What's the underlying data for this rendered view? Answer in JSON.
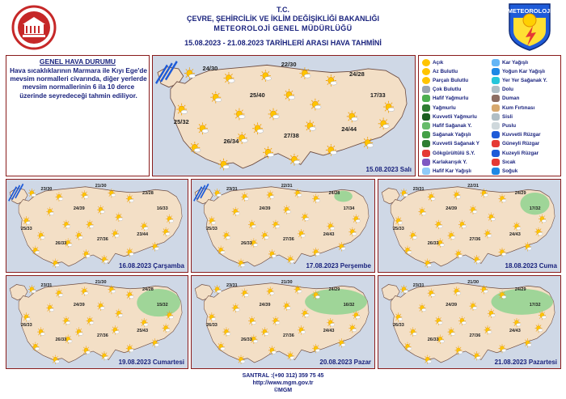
{
  "header": {
    "line1": "T.C.",
    "line2": "ÇEVRE, ŞEHİRCİLİK VE İKLİM DEĞİŞİKLİĞİ BAKANLIĞI",
    "line3": "METEOROLOJİ GENEL MÜDÜRLÜĞÜ",
    "line4": "15.08.2023 - 21.08.2023 TARİHLERİ ARASI HAVA TAHMİNİ",
    "logo_right_text": "METEOROLOJİ"
  },
  "genel": {
    "title": "GENEL HAVA DURUMU",
    "body": "Hava sıcaklıklarının Marmara ile Kıyı Ege'de mevsim normalleri civarında, diğer yerlerde mevsim normallerinin 6 ila 10 derce üzerinde seyredeceği tahmin ediliyor."
  },
  "legend": {
    "left": [
      "Açık",
      "Az Bulutlu",
      "Parçalı Bulutlu",
      "Çok Bulutlu",
      "Hafif Yağmurlu",
      "Yağmurlu",
      "Kuvvetli Yağmurlu",
      "Hafif Sağanak Y.",
      "Sağanak Yağışlı",
      "Kuvvetli Sağanak Y",
      "Gökgürültülü S.Y.",
      "Karlakarışık Y.",
      "Hafif Kar Yağışlı"
    ],
    "right": [
      "Kar Yağışlı",
      "Yoğun Kar Yağışlı",
      "Yer Yer Sağanak Y.",
      "Dolu",
      "Duman",
      "Kum Fırtınası",
      "Sisli",
      "Puslu",
      "Kuvvetli Rüzgar",
      "Güneyli Rüzgar",
      "Kuzeyli Rüzgar",
      "Sıcak",
      "Soğuk"
    ]
  },
  "maps": [
    {
      "date": "15.08.2023 Salı",
      "temps": [
        "24/30",
        "22/30",
        "24/28",
        "25/40",
        "17/33",
        "25/32",
        "27/38",
        "24/44",
        "26/34"
      ]
    },
    {
      "date": "16.08.2023 Çarşamba",
      "temps": [
        "23/30",
        "21/30",
        "23/28",
        "24/39",
        "16/33",
        "25/33",
        "27/36",
        "23/44",
        "26/33"
      ]
    },
    {
      "date": "17.08.2023 Perşembe",
      "temps": [
        "23/31",
        "22/31",
        "24/28",
        "24/39",
        "17/34",
        "25/33",
        "27/36",
        "24/43",
        "26/33"
      ]
    },
    {
      "date": "18.08.2023 Cuma",
      "temps": [
        "23/31",
        "22/31",
        "24/29",
        "24/39",
        "17/32",
        "25/33",
        "27/36",
        "24/43",
        "26/33"
      ]
    },
    {
      "date": "19.08.2023 Cumartesi",
      "temps": [
        "23/31",
        "21/30",
        "24/28",
        "24/39",
        "15/32",
        "26/33",
        "27/36",
        "25/43",
        "26/33"
      ]
    },
    {
      "date": "20.08.2023 Pazar",
      "temps": [
        "23/31",
        "21/30",
        "24/29",
        "24/39",
        "16/32",
        "26/33",
        "27/36",
        "24/43",
        "26/33"
      ]
    },
    {
      "date": "21.08.2023 Pazartesi",
      "temps": [
        "23/31",
        "21/30",
        "24/29",
        "24/39",
        "17/32",
        "26/33",
        "27/36",
        "24/43",
        "26/33"
      ]
    }
  ],
  "footer": {
    "santral": "SANTRAL :(+90 312) 359 75 45",
    "url": "http://www.mgm.gov.tr",
    "copyright": "©MGM"
  },
  "colors": {
    "accent": "#1a237e",
    "frame": "#8a1c1c",
    "map_bg": "#cfd8e6",
    "land": "#f3dfc6",
    "rain": "#8fd48f",
    "wind": "#1e5bd8"
  }
}
